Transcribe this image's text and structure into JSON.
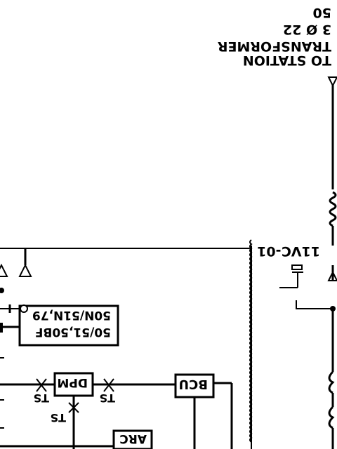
{
  "labels": {
    "note_line1": "TO STATION",
    "note_line2": "TRANSFORMER",
    "note_line3": "3 Ø 22",
    "note_line4": "50",
    "breaker_tag": "11VC-01"
  },
  "blocks": {
    "relay_line1": "50/51,50BF",
    "relay_line2": "50N/51N,79",
    "dpm": "DPM",
    "bcu": "BCU",
    "arc": "ARC"
  },
  "ts_labels": [
    "TS",
    "TS",
    "TS"
  ]
}
